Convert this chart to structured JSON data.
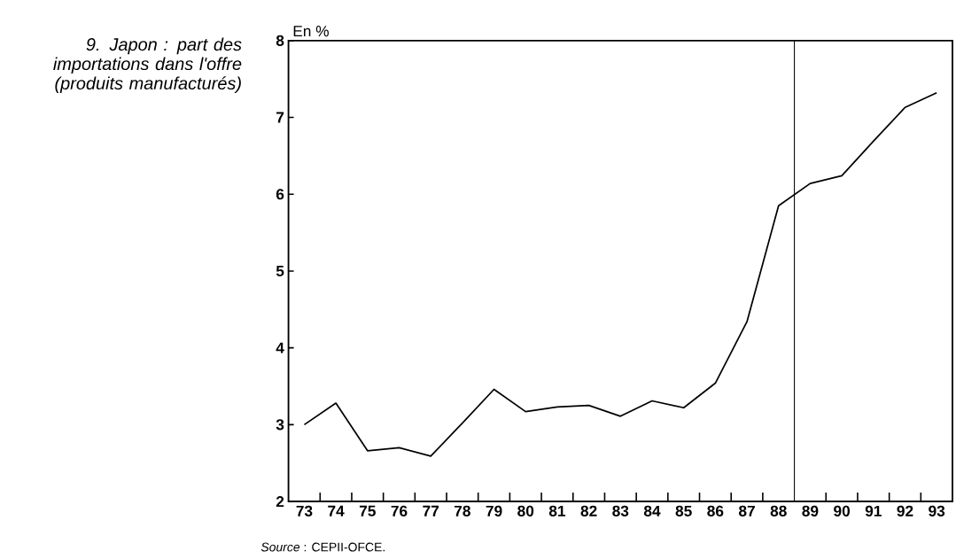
{
  "chart_data": {
    "type": "line",
    "title": "9. Japon : part des importations dans l'offre (produits manufacturés)",
    "ylabel": "En %",
    "x": [
      1973,
      1974,
      1975,
      1976,
      1977,
      1978,
      1979,
      1980,
      1981,
      1982,
      1983,
      1984,
      1985,
      1986,
      1987,
      1988,
      1989,
      1990,
      1991,
      1992,
      1993
    ],
    "values": [
      3.0,
      3.28,
      2.66,
      2.7,
      2.59,
      3.02,
      3.46,
      3.17,
      3.23,
      3.25,
      3.11,
      3.31,
      3.22,
      3.54,
      4.34,
      5.85,
      6.14,
      6.24,
      6.69,
      7.13,
      7.32
    ],
    "color": "#000000",
    "xlim": [
      1972.5,
      1993.5
    ],
    "ylim": [
      2,
      8
    ],
    "xticks": [
      {
        "value": 1973,
        "label": "73"
      },
      {
        "value": 1974,
        "label": "74"
      },
      {
        "value": 1975,
        "label": "75"
      },
      {
        "value": 1976,
        "label": "76"
      },
      {
        "value": 1977,
        "label": "77"
      },
      {
        "value": 1978,
        "label": "78"
      },
      {
        "value": 1979,
        "label": "79"
      },
      {
        "value": 1980,
        "label": "80"
      },
      {
        "value": 1981,
        "label": "81"
      },
      {
        "value": 1982,
        "label": "82"
      },
      {
        "value": 1983,
        "label": "83"
      },
      {
        "value": 1984,
        "label": "84"
      },
      {
        "value": 1985,
        "label": "85"
      },
      {
        "value": 1986,
        "label": "86"
      },
      {
        "value": 1987,
        "label": "87"
      },
      {
        "value": 1988,
        "label": "88"
      },
      {
        "value": 1989,
        "label": "89"
      },
      {
        "value": 1990,
        "label": "90"
      },
      {
        "value": 1991,
        "label": "91"
      },
      {
        "value": 1992,
        "label": "92"
      },
      {
        "value": 1993,
        "label": "93"
      },
      {
        "value": 1973.5,
        "label": null
      },
      {
        "value": 1974.5,
        "label": null
      },
      {
        "value": 1975.5,
        "label": null
      },
      {
        "value": 1976.5,
        "label": null
      },
      {
        "value": 1977.5,
        "label": null
      },
      {
        "value": 1978.5,
        "label": null
      },
      {
        "value": 1979.5,
        "label": null
      },
      {
        "value": 1980.5,
        "label": null
      },
      {
        "value": 1981.5,
        "label": null
      },
      {
        "value": 1982.5,
        "label": null
      },
      {
        "value": 1983.5,
        "label": null
      },
      {
        "value": 1984.5,
        "label": null
      },
      {
        "value": 1985.5,
        "label": null
      },
      {
        "value": 1986.5,
        "label": null
      },
      {
        "value": 1987.5,
        "label": null
      },
      {
        "value": 1989.5,
        "label": null
      },
      {
        "value": 1990.5,
        "label": null
      },
      {
        "value": 1991.5,
        "label": null
      },
      {
        "value": 1992.5,
        "label": null
      }
    ],
    "yticks": [
      2,
      3,
      4,
      5,
      6,
      7,
      8
    ],
    "ref_lines": [
      {
        "axis": "x",
        "value": 1988.5,
        "color": "#000000"
      }
    ],
    "annotations": [
      "*Source* : CEPII-OFCE."
    ]
  }
}
